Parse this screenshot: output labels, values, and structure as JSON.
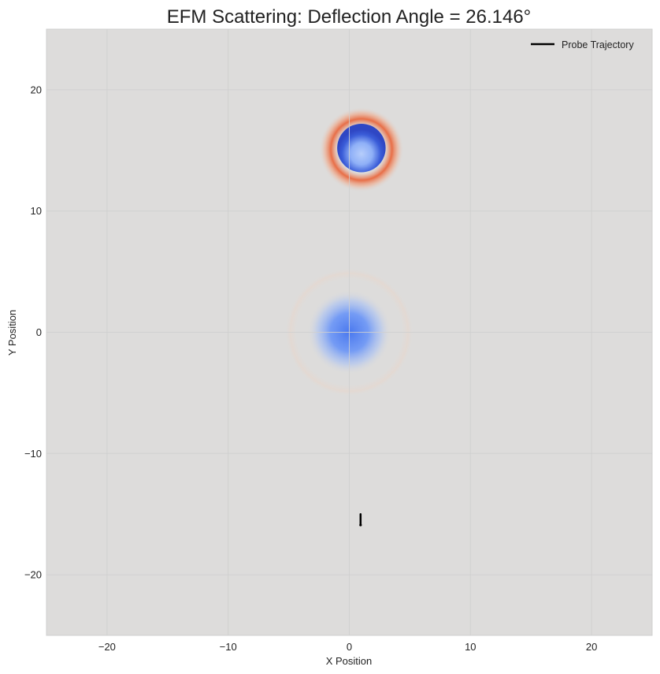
{
  "chart_data": {
    "type": "heatmap",
    "title": "EFM Scattering: Deflection Angle = 26.146°",
    "xlabel": "X Position",
    "ylabel": "Y Position",
    "xlim": [
      -25,
      25
    ],
    "ylim": [
      -25,
      25
    ],
    "xticks": [
      -20,
      -10,
      0,
      10,
      20
    ],
    "yticks": [
      -20,
      -10,
      0,
      10,
      20
    ],
    "xtick_labels": [
      "−20",
      "−10",
      "0",
      "10",
      "20"
    ],
    "ytick_labels": [
      "−20",
      "−10",
      "0",
      "10",
      "20"
    ],
    "grid": true,
    "legend_position": "top-right",
    "colormap": "coolwarm",
    "background_color": "#dddcdb",
    "field_features": [
      {
        "kind": "central-well",
        "center": [
          0,
          0
        ],
        "radius": 3.5,
        "halo_radius": 5.3,
        "color": "#4a7ff0"
      },
      {
        "kind": "probe-packet",
        "center": [
          1,
          15.2
        ],
        "radius": 2.0,
        "ring_radius": 2.6,
        "color": "#3a5cd8",
        "ring_color": "#e8683f"
      }
    ],
    "series": [
      {
        "name": "Probe Trajectory",
        "type": "line",
        "color": "#000000",
        "x": [
          0.93,
          0.93,
          0.93,
          0.93
        ],
        "y": [
          -15.0,
          -15.3,
          -15.6,
          -15.9
        ]
      }
    ]
  }
}
